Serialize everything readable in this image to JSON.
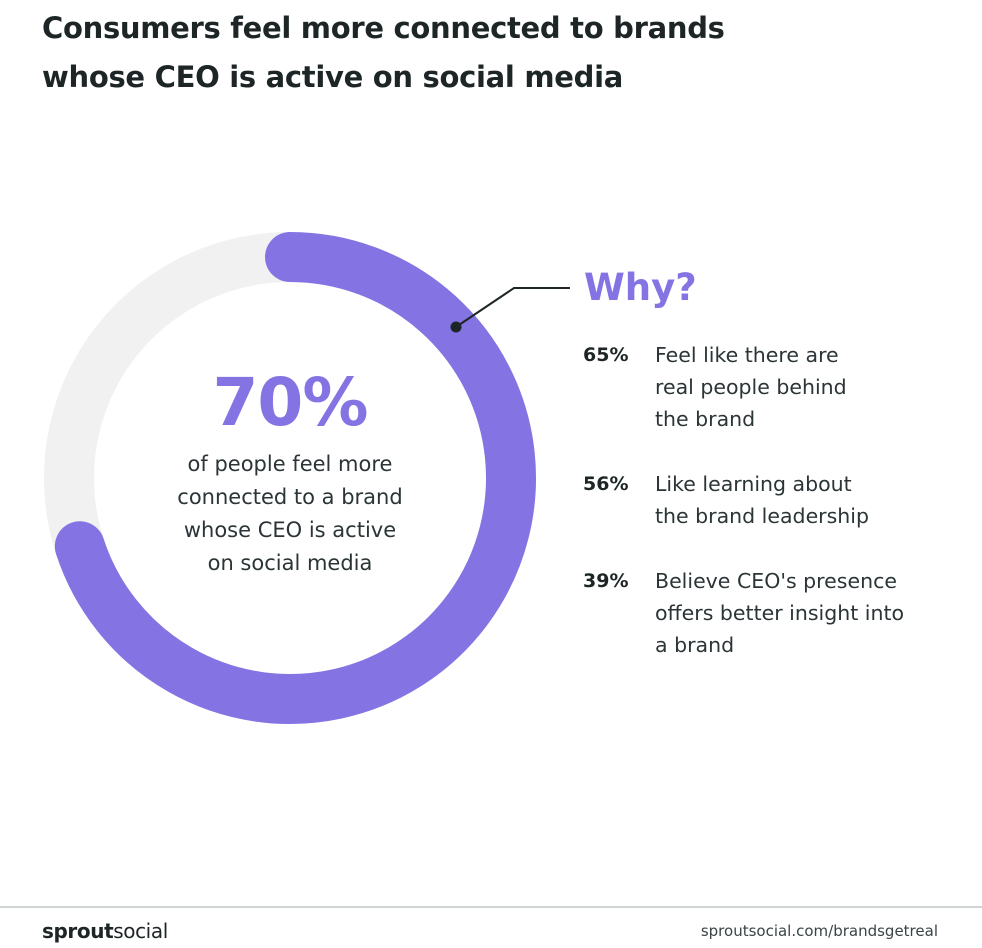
{
  "title_lines": [
    "Consumers feel more connected to brands",
    "whose CEO is active on social media"
  ],
  "chart_data": {
    "type": "pie",
    "variant": "donut",
    "value": 70,
    "max": 100,
    "value_label": "70%",
    "caption_lines": [
      "of people feel more",
      "connected to a brand",
      "whose CEO is active",
      "on social media"
    ],
    "colors": {
      "filled": "#8474e3",
      "track": "#f1f1f1",
      "leader": "#1d2526"
    }
  },
  "why": {
    "heading": "Why?",
    "reasons": [
      {
        "pct": "65%",
        "lines": [
          "Feel like there are",
          "real people behind",
          "the brand"
        ]
      },
      {
        "pct": "56%",
        "lines": [
          "Like learning about",
          "the brand leadership"
        ]
      },
      {
        "pct": "39%",
        "lines": [
          "Believe CEO's presence",
          "offers better insight into",
          "a brand"
        ]
      }
    ]
  },
  "footer": {
    "brand_bold": "sprout",
    "brand_regular": "social",
    "url": "sproutsocial.com/brandsgetreal"
  },
  "colors": {
    "accent": "#8474e3",
    "text": "#1d2526",
    "divider": "#cfd3d4"
  }
}
